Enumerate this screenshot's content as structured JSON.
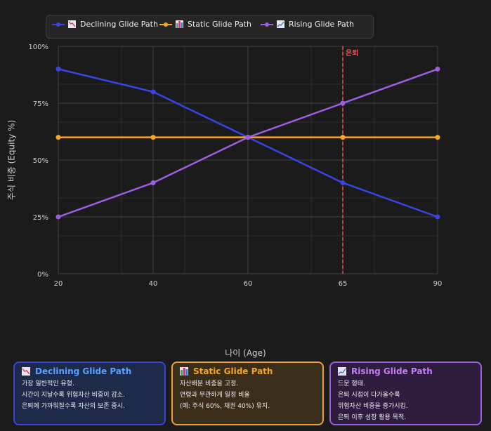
{
  "legend": {
    "items": [
      {
        "label": "Declining Glide Path",
        "color": "#3a44e6",
        "icon": "chart-decreasing-icon"
      },
      {
        "label": "Static Glide Path",
        "color": "#f5a623",
        "icon": "bar-chart-icon"
      },
      {
        "label": "Rising Glide Path",
        "color": "#9b5fe0",
        "icon": "chart-increasing-icon"
      }
    ]
  },
  "axes": {
    "xlabel": "나이 (Age)",
    "ylabel": "주식 비중 (Equity %)",
    "yticks": [
      "100%",
      "75%",
      "50%",
      "25%",
      "0%"
    ],
    "xticks": [
      "20",
      "40",
      "60",
      "65",
      "90"
    ]
  },
  "annotation": {
    "label": "은퇴",
    "x": "65",
    "color": "#e05555"
  },
  "cards": [
    {
      "title": "Declining Glide Path",
      "icon": "chart-decreasing-icon",
      "title_color": "#5aa2ff",
      "border_color": "#3a44d6",
      "bg_color": "#1e2a4a",
      "lines": [
        "가장 일반적인 유형.",
        "시간이 지날수록 위험자산 비중이 감소.",
        "은퇴에 가까워질수록 자산의 보존 중시."
      ]
    },
    {
      "title": "Static Glide Path",
      "icon": "bar-chart-icon",
      "title_color": "#f5a623",
      "border_color": "#f0a030",
      "bg_color": "#3a2d1a",
      "lines": [
        "자산배분 비중을 고정.",
        "연령과 무관하게 일정 비율",
        "(예: 주식 60%, 채권 40%) 유지."
      ]
    },
    {
      "title": "Rising Glide Path",
      "icon": "chart-increasing-icon",
      "title_color": "#c080f0",
      "border_color": "#9b5fe0",
      "bg_color": "#2e1d3e",
      "lines": [
        "드문 형태.",
        "은퇴 시점이 다가올수록",
        "위험자산 비중을 증가시킴.",
        "은퇴 이후 성장 활용 목적."
      ]
    }
  ],
  "chart_data": {
    "type": "line",
    "title": "",
    "categories": [
      "20",
      "40",
      "60",
      "65",
      "90"
    ],
    "series": [
      {
        "name": "Declining Glide Path",
        "color": "#3a44e6",
        "values": [
          90,
          80,
          60,
          40,
          25
        ]
      },
      {
        "name": "Static Glide Path",
        "color": "#f5a623",
        "values": [
          60,
          60,
          60,
          60,
          60
        ]
      },
      {
        "name": "Rising Glide Path",
        "color": "#9b5fe0",
        "values": [
          25,
          40,
          60,
          75,
          90
        ]
      }
    ],
    "xlabel": "나이 (Age)",
    "ylabel": "주식 비중 (Equity %)",
    "ylim": [
      0,
      100
    ],
    "yticks": [
      0,
      25,
      50,
      75,
      100
    ],
    "grid": true,
    "legend_position": "top",
    "annotations": [
      {
        "type": "vertical-dashed-line",
        "x": "65",
        "label": "은퇴"
      }
    ]
  }
}
